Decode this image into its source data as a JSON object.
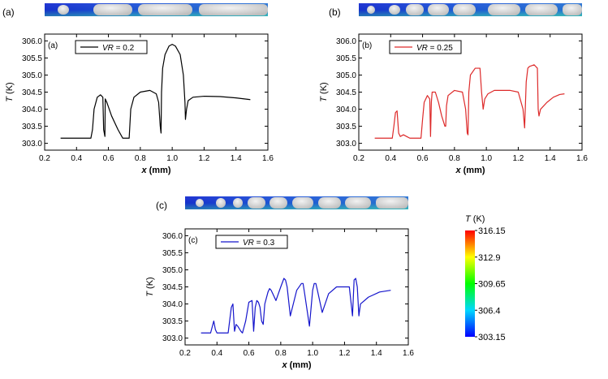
{
  "chart_data": [
    {
      "type": "line",
      "panel_label": "(a)",
      "inset_label": "(a)",
      "legend": "VR = 0.2",
      "legend_var": "VR",
      "legend_val": " = 0.2",
      "color": "#000000",
      "xlabel_var": "x",
      "xlabel_unit": " (mm)",
      "ylabel_var": "T",
      "ylabel_unit": " (K)",
      "xlim": [
        0.2,
        1.6
      ],
      "ylim": [
        302.8,
        306.2
      ],
      "xticks": [
        "0.2",
        "0.4",
        "0.6",
        "0.8",
        "1.0",
        "1.2",
        "1.4",
        "1.6"
      ],
      "yticks": [
        "303.0",
        "303.5",
        "304.0",
        "304.5",
        "305.0",
        "305.5",
        "306.0"
      ],
      "x": [
        0.3,
        0.49,
        0.5,
        0.51,
        0.53,
        0.55,
        0.565,
        0.57,
        0.578,
        0.58,
        0.59,
        0.62,
        0.66,
        0.69,
        0.72,
        0.73,
        0.74,
        0.76,
        0.8,
        0.86,
        0.9,
        0.915,
        0.925,
        0.93,
        0.933,
        0.94,
        0.955,
        0.98,
        1.0,
        1.02,
        1.05,
        1.07,
        1.08,
        1.083,
        1.09,
        1.1,
        1.13,
        1.2,
        1.3,
        1.4,
        1.49
      ],
      "y": [
        303.15,
        303.15,
        303.4,
        304.0,
        304.35,
        304.42,
        304.35,
        303.4,
        303.2,
        304.3,
        304.2,
        303.8,
        303.4,
        303.15,
        303.15,
        303.15,
        304.0,
        304.35,
        304.5,
        304.55,
        304.45,
        304.2,
        303.5,
        303.3,
        304.5,
        305.2,
        305.6,
        305.85,
        305.9,
        305.85,
        305.6,
        305.0,
        304.2,
        303.7,
        304.0,
        304.25,
        304.35,
        304.38,
        304.37,
        304.33,
        304.28
      ]
    },
    {
      "type": "line",
      "panel_label": "(b)",
      "inset_label": "(b)",
      "legend": "VR = 0.25",
      "legend_var": "VR",
      "legend_val": " = 0.25",
      "color": "#dd2a2a",
      "xlabel_var": "x",
      "xlabel_unit": " (mm)",
      "ylabel_var": "T",
      "ylabel_unit": " (K)",
      "xlim": [
        0.2,
        1.6
      ],
      "ylim": [
        302.8,
        306.2
      ],
      "xticks": [
        "0.2",
        "0.4",
        "0.6",
        "0.8",
        "1.0",
        "1.2",
        "1.4",
        "1.6"
      ],
      "yticks": [
        "303.0",
        "303.5",
        "304.0",
        "304.5",
        "305.0",
        "305.5",
        "306.0"
      ],
      "x": [
        0.3,
        0.41,
        0.42,
        0.43,
        0.44,
        0.45,
        0.46,
        0.48,
        0.5,
        0.52,
        0.56,
        0.59,
        0.6,
        0.61,
        0.63,
        0.645,
        0.65,
        0.655,
        0.66,
        0.68,
        0.7,
        0.72,
        0.74,
        0.745,
        0.75,
        0.76,
        0.8,
        0.85,
        0.87,
        0.88,
        0.885,
        0.89,
        0.9,
        0.93,
        0.96,
        0.97,
        0.98,
        0.99,
        1.01,
        1.05,
        1.1,
        1.15,
        1.2,
        1.23,
        1.24,
        1.25,
        1.26,
        1.27,
        1.3,
        1.32,
        1.325,
        1.33,
        1.34,
        1.38,
        1.42,
        1.46,
        1.49
      ],
      "y": [
        303.15,
        303.15,
        303.5,
        303.9,
        303.95,
        303.3,
        303.2,
        303.25,
        303.2,
        303.15,
        303.15,
        303.15,
        303.7,
        304.2,
        304.4,
        304.3,
        303.2,
        304.2,
        304.5,
        304.5,
        304.2,
        303.8,
        303.5,
        303.5,
        304.1,
        304.4,
        304.55,
        304.5,
        304.0,
        303.3,
        303.25,
        304.5,
        305.0,
        305.2,
        305.2,
        304.5,
        304.0,
        304.3,
        304.45,
        304.55,
        304.55,
        304.55,
        304.5,
        304.0,
        303.45,
        304.8,
        305.2,
        305.25,
        305.3,
        305.2,
        304.0,
        303.8,
        304.0,
        304.2,
        304.35,
        304.43,
        304.45
      ]
    },
    {
      "type": "line",
      "panel_label": "(c)",
      "inset_label": "(c)",
      "legend": "VR = 0.3",
      "legend_var": "VR",
      "legend_val": " = 0.3",
      "color": "#1515cc",
      "xlabel_var": "x",
      "xlabel_unit": " (mm)",
      "ylabel_var": "T",
      "ylabel_unit": " (K)",
      "xlim": [
        0.2,
        1.6
      ],
      "ylim": [
        302.8,
        306.2
      ],
      "xticks": [
        "0.2",
        "0.4",
        "0.6",
        "0.8",
        "1.0",
        "1.2",
        "1.4",
        "1.6"
      ],
      "yticks": [
        "303.0",
        "303.5",
        "304.0",
        "304.5",
        "305.0",
        "305.5",
        "306.0"
      ],
      "x": [
        0.3,
        0.36,
        0.38,
        0.39,
        0.4,
        0.47,
        0.49,
        0.5,
        0.51,
        0.52,
        0.53,
        0.55,
        0.56,
        0.58,
        0.6,
        0.62,
        0.63,
        0.64,
        0.65,
        0.66,
        0.67,
        0.68,
        0.69,
        0.7,
        0.72,
        0.73,
        0.74,
        0.75,
        0.77,
        0.8,
        0.82,
        0.83,
        0.84,
        0.86,
        0.9,
        0.93,
        0.94,
        0.95,
        0.98,
        1.0,
        1.01,
        1.02,
        1.03,
        1.06,
        1.1,
        1.15,
        1.2,
        1.22,
        1.23,
        1.25,
        1.26,
        1.27,
        1.28,
        1.29,
        1.3,
        1.35,
        1.42,
        1.49
      ],
      "y": [
        303.15,
        303.15,
        303.5,
        303.25,
        303.15,
        303.15,
        303.9,
        304.0,
        303.2,
        303.4,
        303.35,
        303.2,
        303.15,
        303.5,
        304.05,
        304.1,
        303.2,
        303.9,
        304.1,
        304.05,
        303.9,
        303.5,
        303.4,
        304.0,
        304.35,
        304.45,
        304.4,
        304.3,
        304.1,
        304.5,
        304.75,
        304.7,
        304.5,
        303.65,
        304.4,
        304.6,
        304.6,
        304.3,
        303.35,
        304.4,
        304.6,
        304.6,
        304.4,
        303.75,
        304.3,
        304.5,
        304.5,
        304.5,
        304.5,
        303.65,
        304.7,
        304.75,
        304.5,
        303.65,
        304.0,
        304.2,
        304.35,
        304.4
      ]
    }
  ],
  "colorbar": {
    "label_var": "T",
    "label_unit": " (K)",
    "ticks": [
      "316.15",
      "312.9",
      "309.65",
      "306.4",
      "303.15"
    ],
    "min": 303.15,
    "max": 316.15
  },
  "colors": {
    "series_a": "#000000",
    "series_b": "#dd2a2a",
    "series_c": "#1515cc"
  }
}
